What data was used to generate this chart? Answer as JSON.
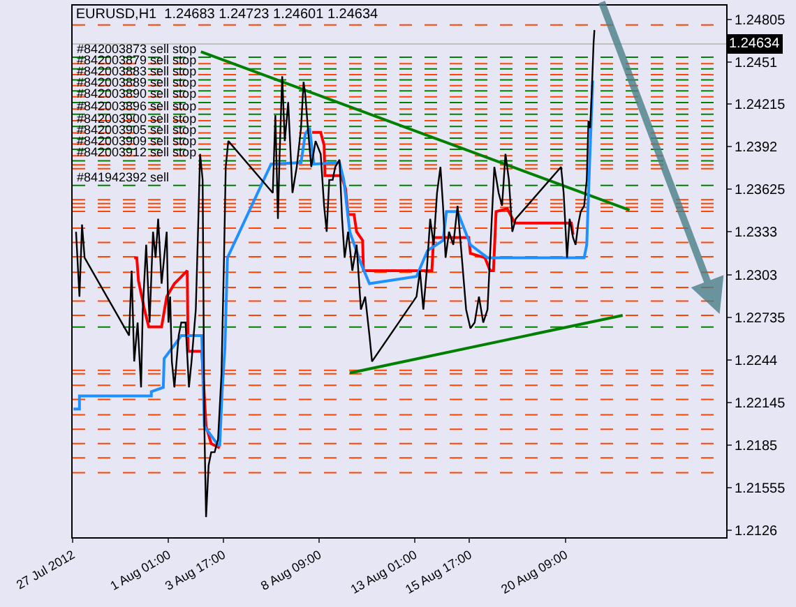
{
  "chart_data": {
    "type": "line",
    "title": "EURUSD,H1  1.24683 1.24723 1.24601 1.24634",
    "xlim": [
      "2012-07-27T09:00",
      "2012-08-28T05:00"
    ],
    "xticks": [
      {
        "value": "2012-07-27T09:00",
        "label": "27 Jul 2012"
      },
      {
        "value": "2012-08-01T01:00",
        "label": "1 Aug 01:00"
      },
      {
        "value": "2012-08-03T17:00",
        "label": "3 Aug 17:00"
      },
      {
        "value": "2012-08-08T09:00",
        "label": "8 Aug 09:00"
      },
      {
        "value": "2012-08-13T01:00",
        "label": "13 Aug 01:00"
      },
      {
        "value": "2012-08-15T17:00",
        "label": "15 Aug 17:00"
      },
      {
        "value": "2012-08-20T09:00",
        "label": "20 Aug 09:00"
      }
    ],
    "ylim": [
      1.2121,
      1.249
    ],
    "yticks": [
      1.24805,
      1.2451,
      1.24215,
      1.2392,
      1.23625,
      1.2333,
      1.2303,
      1.22735,
      1.2244,
      1.22145,
      1.2185,
      1.21555,
      1.2126
    ],
    "grid": false,
    "series": [
      {
        "color": "#000000",
        "x": [
          "2012-07-27T13:00",
          "2012-07-27T17:00",
          "2012-07-27T20:00",
          "2012-07-27T23:00",
          "2012-07-30T03:00",
          "2012-07-30T06:00",
          "2012-07-30T09:00",
          "2012-07-30T13:00",
          "2012-07-30T17:00",
          "2012-07-30T19:00",
          "2012-07-30T23:00",
          "2012-07-31T03:00",
          "2012-07-31T07:00",
          "2012-07-31T10:00",
          "2012-07-31T13:00",
          "2012-07-31T17:00",
          "2012-07-31T20:00",
          "2012-07-31T23:00",
          "2012-08-01T01:00",
          "2012-08-01T03:00",
          "2012-08-01T05:00",
          "2012-08-01T08:00",
          "2012-08-01T13:00",
          "2012-08-01T16:00",
          "2012-08-01T21:00",
          "2012-08-02T01:00",
          "2012-08-02T04:00",
          "2012-08-02T09:00",
          "2012-08-02T12:00",
          "2012-08-02T14:00",
          "2012-08-02T17:00",
          "2012-08-02T19:00",
          "2012-08-02T21:00",
          "2012-08-03T00:00",
          "2012-08-03T03:00",
          "2012-08-03T07:00",
          "2012-08-03T11:00",
          "2012-08-03T15:00",
          "2012-08-03T18:00",
          "2012-08-03T20:00",
          "2012-08-03T23:00",
          "2012-08-06T03:00",
          "2012-08-06T06:00",
          "2012-08-06T09:00",
          "2012-08-06T11:00",
          "2012-08-06T14:00",
          "2012-08-06T17:00",
          "2012-08-06T21:00",
          "2012-08-07T02:00",
          "2012-08-07T07:00",
          "2012-08-07T12:00",
          "2012-08-07T15:00",
          "2012-08-07T17:00",
          "2012-08-07T20:00",
          "2012-08-08T00:00",
          "2012-08-08T05:00",
          "2012-08-08T11:00",
          "2012-08-08T15:00",
          "2012-08-08T18:00",
          "2012-08-08T21:00",
          "2012-08-09T01:00",
          "2012-08-09T04:00",
          "2012-08-09T09:00",
          "2012-08-09T12:00",
          "2012-08-09T15:00",
          "2012-08-09T19:00",
          "2012-08-10T00:00",
          "2012-08-10T05:00",
          "2012-08-10T10:00",
          "2012-08-10T15:00",
          "2012-08-10T20:00",
          "2012-08-10T23:00",
          "2012-08-13T03:00",
          "2012-08-13T07:00",
          "2012-08-13T11:00",
          "2012-08-13T15:00",
          "2012-08-13T19:00",
          "2012-08-13T23:00",
          "2012-08-14T03:00",
          "2012-08-14T07:00",
          "2012-08-14T10:00",
          "2012-08-14T13:00",
          "2012-08-14T17:00",
          "2012-08-14T22:00",
          "2012-08-15T03:00",
          "2012-08-15T08:00",
          "2012-08-15T13:00",
          "2012-08-15T18:00",
          "2012-08-15T23:00",
          "2012-08-16T04:00",
          "2012-08-16T09:00",
          "2012-08-16T14:00",
          "2012-08-16T19:00",
          "2012-08-16T22:00",
          "2012-08-17T03:00",
          "2012-08-17T07:00",
          "2012-08-17T11:00",
          "2012-08-17T15:00",
          "2012-08-17T19:00",
          "2012-08-17T23:00",
          "2012-08-20T04:00",
          "2012-08-20T07:00",
          "2012-08-20T11:00",
          "2012-08-20T14:00",
          "2012-08-20T18:00",
          "2012-08-20T21:00",
          "2012-08-21T00:00",
          "2012-08-21T03:00",
          "2012-08-21T07:00",
          "2012-08-21T10:00",
          "2012-08-21T12:00",
          "2012-08-21T14:00",
          "2012-08-21T16:00",
          "2012-08-21T18:00",
          "2012-08-21T19:00"
        ],
        "values": [
          1.2333,
          1.2288,
          1.2338,
          1.2315,
          1.2261,
          1.2306,
          1.2243,
          1.227,
          1.2225,
          1.2279,
          1.2324,
          1.227,
          1.2333,
          1.2315,
          1.2342,
          1.2297,
          1.2315,
          1.2333,
          1.227,
          1.2288,
          1.2243,
          1.2225,
          1.2261,
          1.227,
          1.227,
          1.2225,
          1.2243,
          1.2279,
          1.2342,
          1.2387,
          1.2369,
          1.2198,
          1.2135,
          1.2171,
          1.218,
          1.218,
          1.2189,
          1.2234,
          1.2315,
          1.2378,
          1.2396,
          1.236,
          1.2414,
          1.2342,
          1.2387,
          1.2441,
          1.2396,
          1.2423,
          1.236,
          1.2378,
          1.2405,
          1.2437,
          1.2428,
          1.2405,
          1.2378,
          1.2396,
          1.2387,
          1.2351,
          1.2333,
          1.2369,
          1.2369,
          1.2378,
          1.2383,
          1.2342,
          1.2315,
          1.2333,
          1.2306,
          1.2324,
          1.2279,
          1.2288,
          1.2261,
          1.2243,
          1.2288,
          1.2306,
          1.2279,
          1.2306,
          1.2342,
          1.2324,
          1.236,
          1.2378,
          1.2351,
          1.2315,
          1.2333,
          1.2324,
          1.2351,
          1.2315,
          1.2279,
          1.2266,
          1.227,
          1.2288,
          1.227,
          1.2279,
          1.2342,
          1.2378,
          1.236,
          1.2351,
          1.2387,
          1.2369,
          1.2333,
          1.2342,
          1.2378,
          1.236,
          1.2315,
          1.2342,
          1.2329,
          1.2324,
          1.2338,
          1.2347,
          1.2351,
          1.2369,
          1.241,
          1.2405,
          1.2432,
          1.2464,
          1.2473
        ]
      },
      {
        "color": "#1e90ff",
        "x": [
          "2012-07-27T10:00",
          "2012-07-27T17:00",
          "2012-07-27T17:00",
          "2012-07-31T05:00",
          "2012-07-31T05:00",
          "2012-07-31T19:00",
          "2012-07-31T20:00",
          "2012-08-01T10:00",
          "2012-08-01T16:00",
          "2012-08-02T16:00",
          "2012-08-02T19:00",
          "2012-08-03T11:00",
          "2012-08-03T13:00",
          "2012-08-03T16:00",
          "2012-08-03T19:00",
          "2012-08-03T22:00",
          "2012-08-06T01:00",
          "2012-08-07T12:00",
          "2012-08-07T17:00",
          "2012-08-07T22:00",
          "2012-08-08T03:00",
          "2012-08-09T09:00",
          "2012-08-09T14:00",
          "2012-08-09T21:00",
          "2012-08-10T10:00",
          "2012-08-10T20:00",
          "2012-08-13T03:00",
          "2012-08-13T16:00",
          "2012-08-14T10:00",
          "2012-08-14T14:00",
          "2012-08-15T03:00",
          "2012-08-15T18:00",
          "2012-08-16T14:00",
          "2012-08-21T07:00",
          "2012-08-21T10:00",
          "2012-08-21T13:00",
          "2012-08-21T17:00"
        ],
        "values": [
          1.221,
          1.221,
          1.2219,
          1.2219,
          1.2222,
          1.2225,
          1.2245,
          1.2256,
          1.2261,
          1.2261,
          1.2198,
          1.2185,
          1.2185,
          1.2225,
          1.2252,
          1.2315,
          1.238,
          1.2381,
          1.2401,
          1.2405,
          1.238,
          1.2381,
          1.2369,
          1.2333,
          1.2311,
          1.2297,
          1.2302,
          1.232,
          1.2327,
          1.2347,
          1.2347,
          1.2324,
          1.2315,
          1.2315,
          1.2324,
          1.2375,
          1.2438
        ]
      },
      {
        "color": "#ff0000",
        "x": [
          "2012-07-30T09:00",
          "2012-07-30T12:00",
          "2012-07-30T14:00",
          "2012-07-30T21:00",
          "2012-07-31T02:00",
          "2012-07-31T17:00",
          "2012-07-31T23:00",
          "2012-08-01T08:00",
          "2012-08-01T23:00",
          "2012-08-02T00:00",
          "2012-08-02T16:00",
          "2012-08-02T21:00",
          "2012-08-03T03:00",
          "2012-08-03T13:00",
          "2012-08-06T15:00",
          "2012-08-08T01:00",
          "2012-08-08T11:00",
          "2012-08-08T15:00",
          "2012-08-08T16:00",
          "2012-08-09T11:00",
          "2012-08-09T16:00",
          "2012-08-09T19:00",
          "2012-08-10T02:00",
          "2012-08-10T05:00",
          "2012-08-10T12:00",
          "2012-08-10T13:00",
          "2012-08-13T21:00",
          "2012-08-13T23:00",
          "2012-08-15T16:00",
          "2012-08-15T18:00",
          "2012-08-16T11:00",
          "2012-08-16T17:00",
          "2012-08-16T21:00",
          "2012-08-17T00:00",
          "2012-08-17T13:00",
          "2012-08-17T22:00",
          "2012-08-20T16:00",
          "2012-08-20T18:00"
        ],
        "values": [
          1.2315,
          1.2315,
          1.2299,
          1.2279,
          1.2267,
          1.2267,
          1.2288,
          1.2297,
          1.2306,
          1.225,
          1.225,
          1.2198,
          1.2186,
          1.2183,
          null,
          1.2402,
          1.2402,
          1.2393,
          1.2372,
          1.2372,
          1.2363,
          1.2345,
          1.2345,
          1.2333,
          1.2327,
          1.2306,
          1.2306,
          1.2329,
          1.2329,
          1.2318,
          1.2315,
          1.2306,
          1.2306,
          1.2347,
          1.2349,
          1.2339,
          1.2339,
          1.2331
        ]
      },
      {
        "color": "#008000",
        "x": [
          "2012-08-02T15:00",
          "2012-08-23T12:00"
        ],
        "values": [
          1.2458,
          1.2348
        ]
      },
      {
        "color": "#008000",
        "x": [
          "2012-08-09T21:00",
          "2012-08-23T04:00"
        ],
        "values": [
          1.2235,
          1.2275
        ]
      }
    ],
    "ref_lines": [
      {
        "axis": "y",
        "value": 1.24634,
        "color": "#c0c0c0",
        "line_style": "solid",
        "label": "1.24634"
      },
      {
        "axis": "y",
        "value": 1.24542,
        "color": "#008000",
        "line_style": "dashed",
        "label": "#842003873 sell stop"
      },
      {
        "axis": "y",
        "value": 1.24461,
        "color": "#008000",
        "line_style": "dashed",
        "label": "#842003879 sell stop"
      },
      {
        "axis": "y",
        "value": 1.24384,
        "color": "#008000",
        "line_style": "dashed",
        "label": "#842003883 sell stop"
      },
      {
        "axis": "y",
        "value": 1.24308,
        "color": "#008000",
        "line_style": "dashed",
        "label": "#842003889 sell stop"
      },
      {
        "axis": "y",
        "value": 1.24227,
        "color": "#008000",
        "line_style": "dashed",
        "label": "#842003890 sell stop"
      },
      {
        "axis": "y",
        "value": 1.24146,
        "color": "#008000",
        "line_style": "dashed",
        "label": "#842003896 sell stop"
      },
      {
        "axis": "y",
        "value": 1.24061,
        "color": "#008000",
        "line_style": "dashed",
        "label": "#842003900 sell stop"
      },
      {
        "axis": "y",
        "value": 1.2398,
        "color": "#008000",
        "line_style": "dashed",
        "label": "#842003905 sell stop"
      },
      {
        "axis": "y",
        "value": 1.23903,
        "color": "#008000",
        "line_style": "dashed",
        "label": "#842003909 sell stop"
      },
      {
        "axis": "y",
        "value": 1.23822,
        "color": "#008000",
        "line_style": "dashed",
        "label": "#842003912 sell stop"
      },
      {
        "axis": "y",
        "value": 1.23652,
        "color": "#008000",
        "line_style": "dashed",
        "label": "#841942392 sell"
      },
      {
        "axis": "y",
        "value": 1.22669,
        "color": "#008000",
        "line_style": "dashed"
      },
      {
        "axis": "y",
        "value": 1.24766,
        "color": "#ff4500",
        "line_style": "dashed"
      },
      {
        "axis": "y",
        "value": 1.24497,
        "color": "#ff4500",
        "line_style": "dashed"
      },
      {
        "axis": "y",
        "value": 1.2442,
        "color": "#ff4500",
        "line_style": "dashed"
      },
      {
        "axis": "y",
        "value": 1.24344,
        "color": "#ff4500",
        "line_style": "dashed"
      },
      {
        "axis": "y",
        "value": 1.24267,
        "color": "#ff4500",
        "line_style": "dashed"
      },
      {
        "axis": "y",
        "value": 1.24182,
        "color": "#ff4500",
        "line_style": "dashed"
      },
      {
        "axis": "y",
        "value": 1.24101,
        "color": "#ff4500",
        "line_style": "dashed"
      },
      {
        "axis": "y",
        "value": 1.24016,
        "color": "#ff4500",
        "line_style": "dashed"
      },
      {
        "axis": "y",
        "value": 1.23939,
        "color": "#ff4500",
        "line_style": "dashed"
      },
      {
        "axis": "y",
        "value": 1.23858,
        "color": "#ff4500",
        "line_style": "dashed"
      },
      {
        "axis": "y",
        "value": 1.23795,
        "color": "#ff4500",
        "line_style": "dashed"
      },
      {
        "axis": "y",
        "value": 1.23768,
        "color": "#ff4500",
        "line_style": "dashed"
      },
      {
        "axis": "y",
        "value": 1.23553,
        "color": "#ff4500",
        "line_style": "dashed"
      },
      {
        "axis": "y",
        "value": 1.23526,
        "color": "#ff4500",
        "line_style": "dashed"
      },
      {
        "axis": "y",
        "value": 1.23499,
        "color": "#ff4500",
        "line_style": "dashed"
      },
      {
        "axis": "y",
        "value": 1.23472,
        "color": "#ff4500",
        "line_style": "dashed"
      },
      {
        "axis": "y",
        "value": 1.23355,
        "color": "#ff4500",
        "line_style": "dashed"
      },
      {
        "axis": "y",
        "value": 1.23256,
        "color": "#ff4500",
        "line_style": "dashed"
      },
      {
        "axis": "y",
        "value": 1.23157,
        "color": "#ff4500",
        "line_style": "dashed"
      },
      {
        "axis": "y",
        "value": 1.23049,
        "color": "#ff4500",
        "line_style": "dashed"
      },
      {
        "axis": "y",
        "value": 1.22944,
        "color": "#ff4500",
        "line_style": "dashed"
      },
      {
        "axis": "y",
        "value": 1.22849,
        "color": "#ff4500",
        "line_style": "dashed"
      },
      {
        "axis": "y",
        "value": 1.2275,
        "color": "#ff4500",
        "line_style": "dashed"
      },
      {
        "axis": "y",
        "value": 1.22369,
        "color": "#ff4500",
        "line_style": "dashed"
      },
      {
        "axis": "y",
        "value": 1.22344,
        "color": "#ff4500",
        "line_style": "dashed"
      },
      {
        "axis": "y",
        "value": 1.22264,
        "color": "#ff4500",
        "line_style": "dashed"
      },
      {
        "axis": "y",
        "value": 1.22166,
        "color": "#ff4500",
        "line_style": "dashed"
      },
      {
        "axis": "y",
        "value": 1.2206,
        "color": "#ff4500",
        "line_style": "dashed"
      },
      {
        "axis": "y",
        "value": 1.21959,
        "color": "#ff4500",
        "line_style": "dashed"
      },
      {
        "axis": "y",
        "value": 1.2186,
        "color": "#ff4500",
        "line_style": "dashed"
      },
      {
        "axis": "y",
        "value": 1.21761,
        "color": "#ff4500",
        "line_style": "dashed"
      },
      {
        "axis": "y",
        "value": 1.21658,
        "color": "#ff4500",
        "line_style": "dashed"
      }
    ]
  }
}
